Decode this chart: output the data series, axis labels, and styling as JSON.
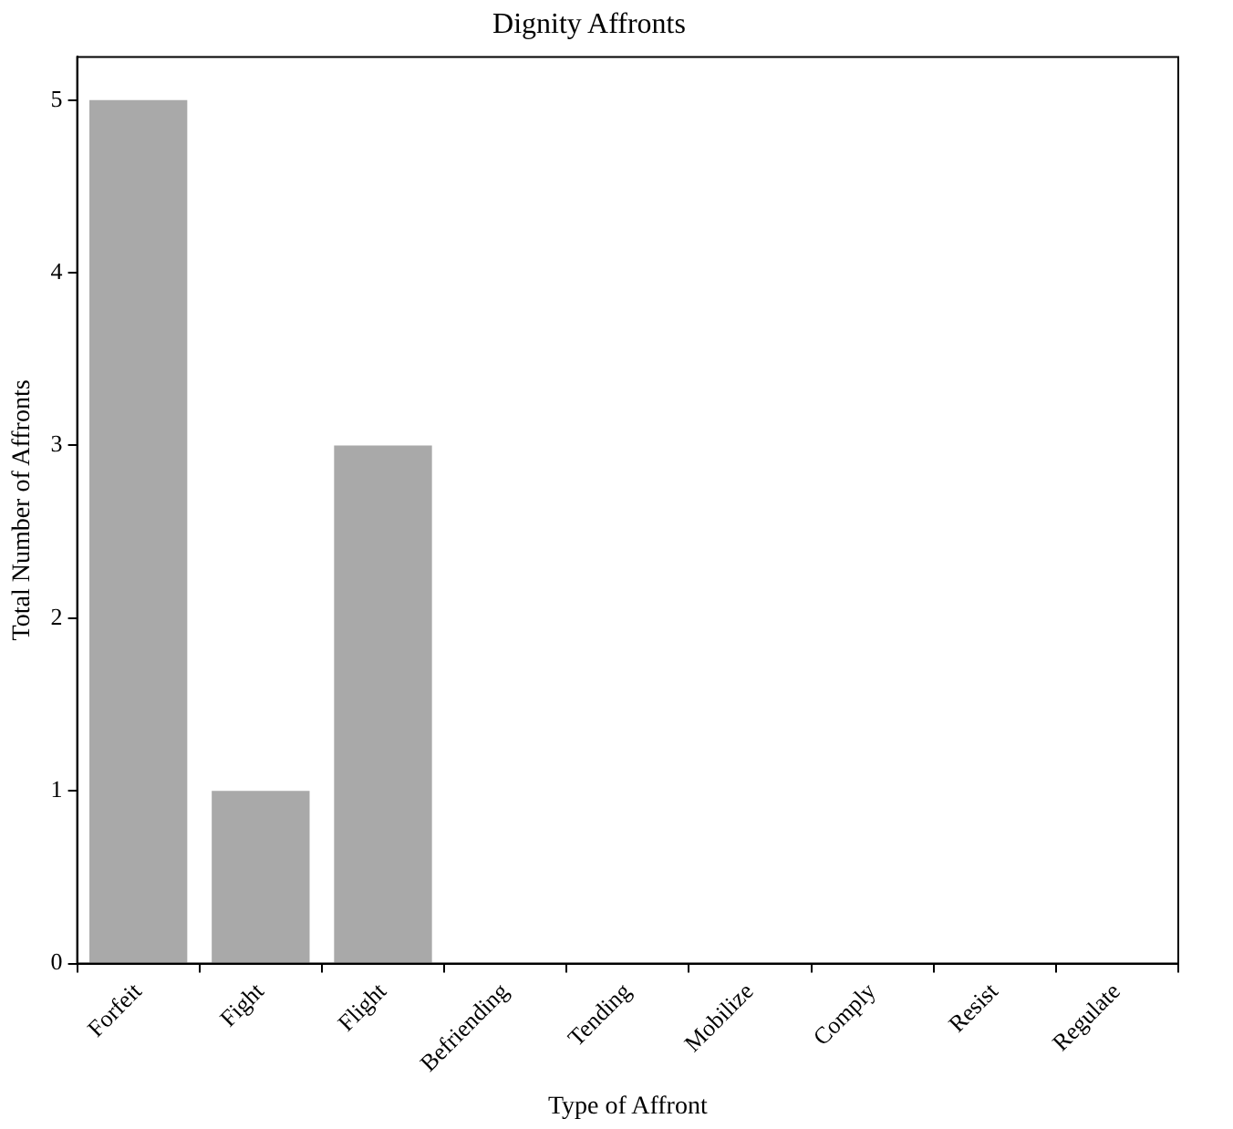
{
  "chart_data": {
    "type": "bar",
    "title": "Dignity Affronts",
    "xlabel": "Type of Affront",
    "ylabel": "Total Number of Affronts",
    "categories": [
      "Forfeit",
      "Fight",
      "Flight",
      "Befriending",
      "Tending",
      "Mobilize",
      "Comply",
      "Resist",
      "Regulate"
    ],
    "values": [
      5,
      1,
      3,
      0,
      0,
      0,
      0,
      0,
      0
    ],
    "color": "#a9a9a9",
    "ylim": [
      0,
      5.25
    ],
    "yticks": [
      0,
      1,
      2,
      3,
      4,
      5
    ],
    "grid": false,
    "legend": false
  }
}
